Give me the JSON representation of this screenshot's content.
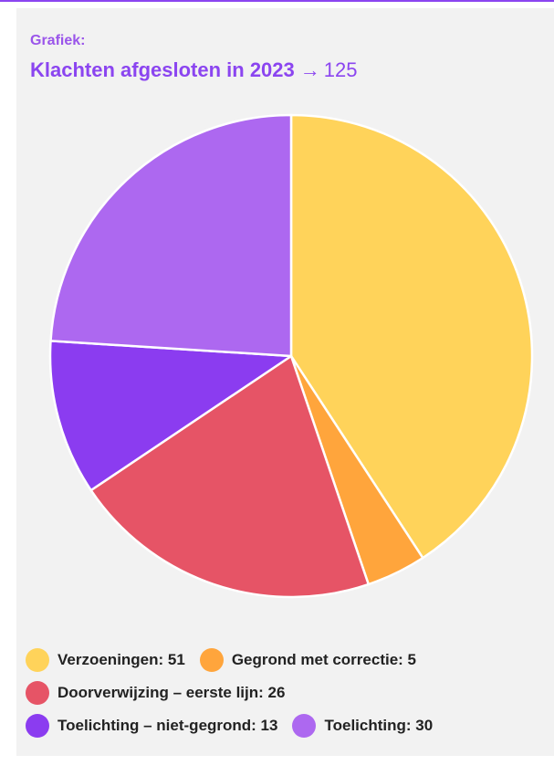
{
  "header": {
    "kicker": "Grafiek:",
    "title": "Klachten afgesloten in 2023",
    "arrow": "→",
    "total": "125"
  },
  "chart_data": {
    "type": "pie",
    "slices": [
      {
        "label": "Verzoeningen",
        "value": 51,
        "color": "#ffd35a"
      },
      {
        "label": "Gegrond met correctie",
        "value": 5,
        "color": "#ffa53c"
      },
      {
        "label": "Doorverwijzing – eerste lijn",
        "value": 26,
        "color": "#e65466"
      },
      {
        "label": "Toelichting – niet-gegrond",
        "value": 13,
        "color": "#8b3cf0"
      },
      {
        "label": "Toelichting",
        "value": 30,
        "color": "#ad68f0"
      }
    ]
  },
  "legend": {
    "rows": [
      [
        {
          "text": "Verzoeningen: 51",
          "color": "#ffd35a"
        },
        {
          "text": "Gegrond met correctie: 5",
          "color": "#ffa53c"
        }
      ],
      [
        {
          "text": "Doorverwijzing – eerste lijn: 26",
          "color": "#e65466"
        }
      ],
      [
        {
          "text": "Toelichting – niet-gegrond: 13",
          "color": "#8b3cf0"
        },
        {
          "text": "Toelichting: 30",
          "color": "#ad68f0"
        }
      ]
    ]
  }
}
